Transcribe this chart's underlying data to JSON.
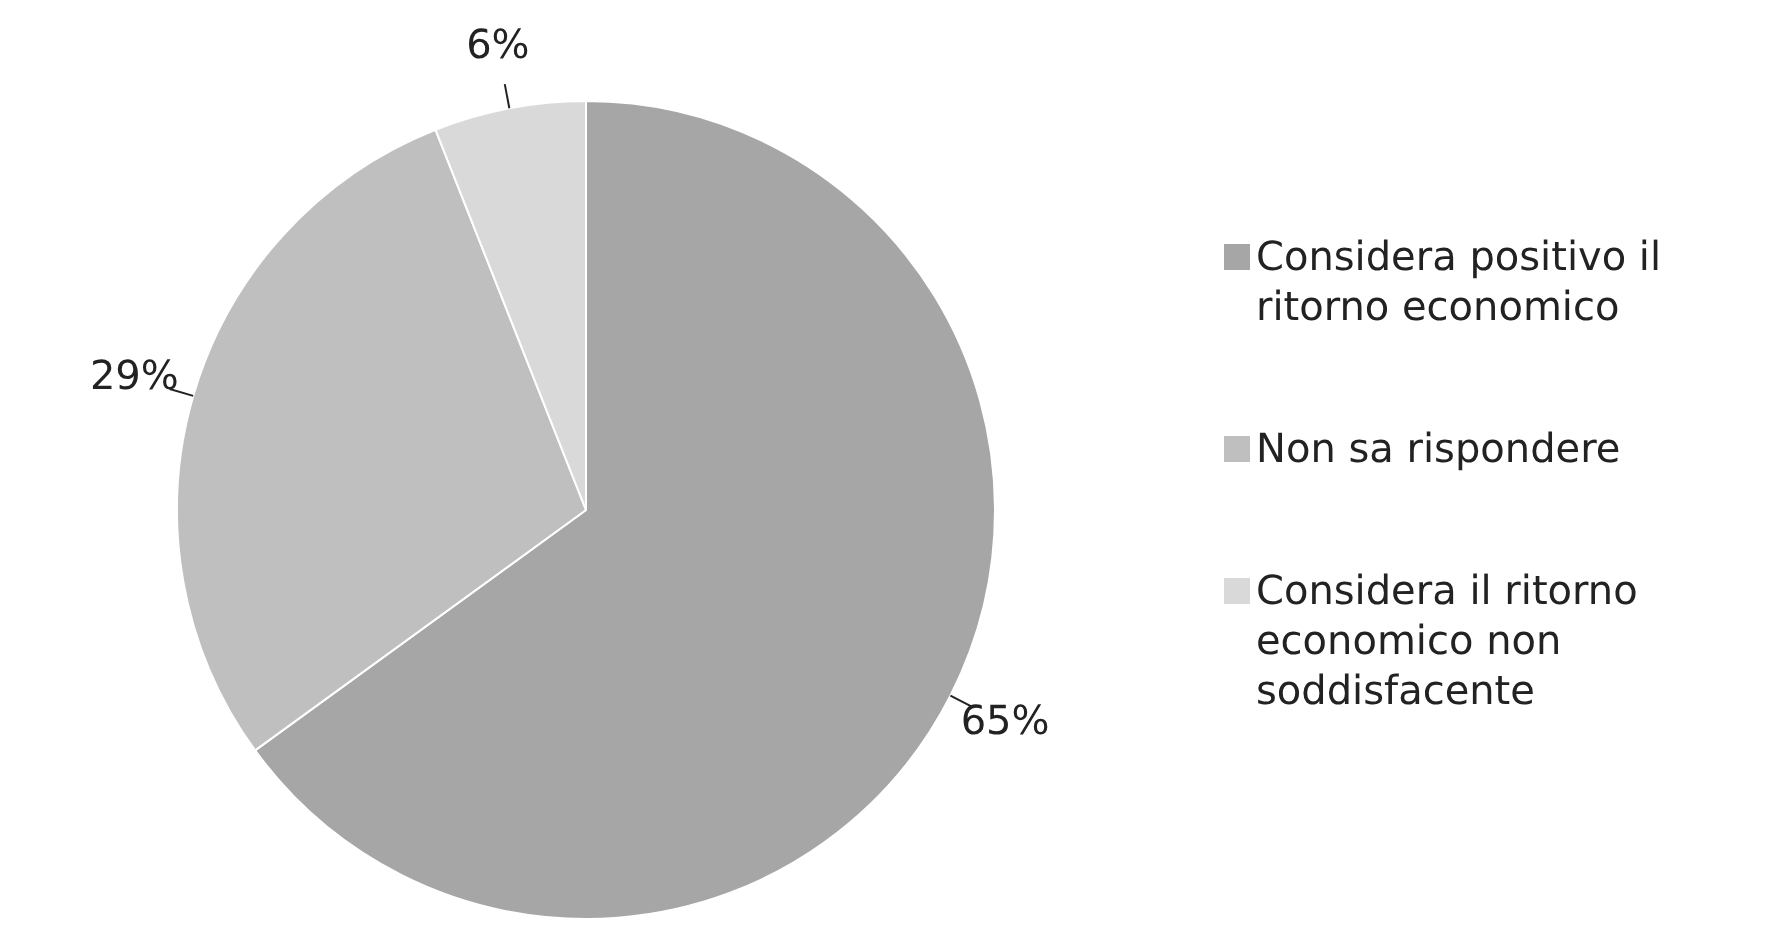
{
  "chart_data": {
    "type": "pie",
    "categories": [
      "Considera positivo il ritorno economico",
      "Non sa rispondere",
      "Considera il ritorno economico non soddisfacente"
    ],
    "values": [
      65,
      29,
      6
    ],
    "colors": [
      "#a6a6a6",
      "#bfbfbf",
      "#d9d9d9"
    ],
    "value_labels": [
      "65%",
      "29%",
      "6%"
    ],
    "legend": "right"
  }
}
